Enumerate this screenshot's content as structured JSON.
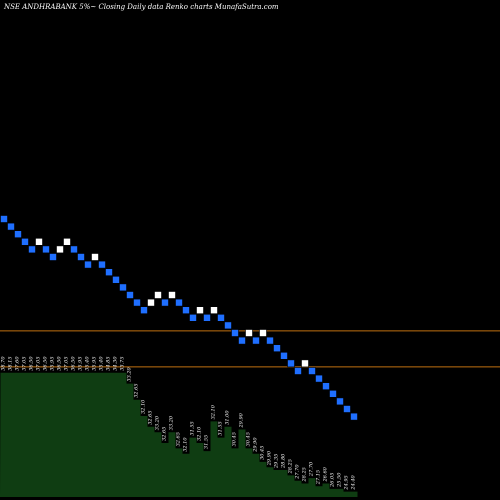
{
  "chart_data": {
    "type": "renko",
    "title": "NSE ANDHRABANK 5%~  Closing Daily data  Renko  charts MunafaSutra.com",
    "colors": {
      "background": "#000000",
      "down_brick": "#1f6fff",
      "up_brick": "#ffffff",
      "volume_fill": "#0f3d12",
      "reference_line": "#c07010"
    },
    "reference_lines": [
      30.6,
      28.0
    ],
    "bricks": [
      {
        "dir": "down",
        "value": 38.7
      },
      {
        "dir": "down",
        "value": 38.15
      },
      {
        "dir": "down",
        "value": 37.6
      },
      {
        "dir": "down",
        "value": 37.05
      },
      {
        "dir": "down",
        "value": 36.5
      },
      {
        "dir": "up",
        "value": 37.05
      },
      {
        "dir": "down",
        "value": 36.5
      },
      {
        "dir": "down",
        "value": 35.95
      },
      {
        "dir": "up",
        "value": 36.5
      },
      {
        "dir": "up",
        "value": 37.05
      },
      {
        "dir": "down",
        "value": 36.5
      },
      {
        "dir": "down",
        "value": 35.95
      },
      {
        "dir": "down",
        "value": 35.4
      },
      {
        "dir": "up",
        "value": 35.95
      },
      {
        "dir": "down",
        "value": 35.4
      },
      {
        "dir": "down",
        "value": 34.85
      },
      {
        "dir": "down",
        "value": 34.3
      },
      {
        "dir": "down",
        "value": 33.75
      },
      {
        "dir": "down",
        "value": 33.2
      },
      {
        "dir": "down",
        "value": 32.65
      },
      {
        "dir": "down",
        "value": 32.1
      },
      {
        "dir": "up",
        "value": 32.65
      },
      {
        "dir": "up",
        "value": 33.2
      },
      {
        "dir": "down",
        "value": 32.65
      },
      {
        "dir": "up",
        "value": 33.2
      },
      {
        "dir": "down",
        "value": 32.65
      },
      {
        "dir": "down",
        "value": 32.1
      },
      {
        "dir": "down",
        "value": 31.55
      },
      {
        "dir": "up",
        "value": 32.1
      },
      {
        "dir": "down",
        "value": 31.55
      },
      {
        "dir": "up",
        "value": 32.1
      },
      {
        "dir": "down",
        "value": 31.55
      },
      {
        "dir": "down",
        "value": 31.0
      },
      {
        "dir": "down",
        "value": 30.45
      },
      {
        "dir": "down",
        "value": 29.9
      },
      {
        "dir": "up",
        "value": 30.45
      },
      {
        "dir": "down",
        "value": 29.9
      },
      {
        "dir": "up",
        "value": 30.45
      },
      {
        "dir": "down",
        "value": 29.9
      },
      {
        "dir": "down",
        "value": 29.35
      },
      {
        "dir": "down",
        "value": 28.8
      },
      {
        "dir": "down",
        "value": 28.25
      },
      {
        "dir": "down",
        "value": 27.7
      },
      {
        "dir": "up",
        "value": 28.25
      },
      {
        "dir": "down",
        "value": 27.7
      },
      {
        "dir": "down",
        "value": 27.15
      },
      {
        "dir": "down",
        "value": 26.6
      },
      {
        "dir": "down",
        "value": 26.05
      },
      {
        "dir": "down",
        "value": 25.5
      },
      {
        "dir": "down",
        "value": 24.95
      },
      {
        "dir": "down",
        "value": 24.4
      }
    ],
    "price_labels": [
      "38.70",
      "38.15",
      "37.60",
      "37.05",
      "36.50",
      "37.05",
      "36.50",
      "35.95",
      "36.50",
      "37.05",
      "36.50",
      "35.95",
      "35.40",
      "35.95",
      "35.40",
      "34.85",
      "34.30",
      "33.75",
      "33.20",
      "32.65",
      "32.10",
      "32.65",
      "33.20",
      "32.65",
      "33.20",
      "32.65",
      "32.10",
      "31.55",
      "32.10",
      "31.55",
      "32.10",
      "31.55",
      "31.00",
      "30.45",
      "29.90",
      "30.45",
      "29.90",
      "30.45",
      "29.90",
      "29.35",
      "28.80",
      "28.25",
      "27.70",
      "28.25",
      "27.70",
      "27.15",
      "26.60",
      "26.05",
      "25.50",
      "24.95",
      "24.40"
    ],
    "volume": [
      0.46,
      0.46,
      0.46,
      0.46,
      0.46,
      0.46,
      0.46,
      0.46,
      0.46,
      0.46,
      0.46,
      0.46,
      0.46,
      0.46,
      0.46,
      0.46,
      0.46,
      0.46,
      0.42,
      0.36,
      0.3,
      0.26,
      0.24,
      0.2,
      0.24,
      0.18,
      0.16,
      0.22,
      0.2,
      0.17,
      0.28,
      0.22,
      0.26,
      0.18,
      0.25,
      0.18,
      0.16,
      0.13,
      0.11,
      0.1,
      0.1,
      0.08,
      0.06,
      0.05,
      0.07,
      0.04,
      0.05,
      0.03,
      0.03,
      0.02,
      0.02
    ]
  }
}
